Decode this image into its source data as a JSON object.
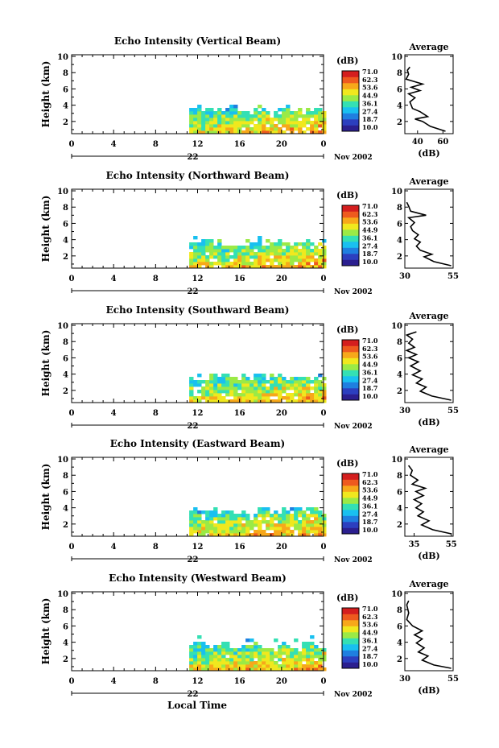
{
  "chart_data": {
    "type": "heatmap",
    "xlabel": "Local Time",
    "date_label": "Nov 2002",
    "colorbar": {
      "unit_label": "(dB)",
      "ticks": [
        "71.0",
        "62.3",
        "53.6",
        "44.9",
        "36.1",
        "27.4",
        "18.7",
        "10.0"
      ],
      "colors": [
        "#2b1f8f",
        "#2c3fbf",
        "#1f7fe0",
        "#19c0f0",
        "#34e0b4",
        "#9bea46",
        "#f0e81e",
        "#f7a81a",
        "#ee5a1e",
        "#d41e1e"
      ]
    },
    "panels": [
      {
        "title": "Echo Intensity (Vertical Beam)",
        "ylabel": "Height (km)",
        "day_label": "22",
        "x_ticks": [
          "0",
          "4",
          "8",
          "12",
          "16",
          "20",
          "0"
        ],
        "y_ticks": [
          "2",
          "4",
          "6",
          "8",
          "10"
        ],
        "xlim": [
          0,
          24
        ],
        "ylim": [
          0.5,
          10.2
        ],
        "echo": {
          "start_hour": 11.2,
          "end_hour": 24,
          "top_km": 3.6,
          "scatter_top_km": 4.1,
          "max_db": 70
        },
        "average": {
          "title": "Average",
          "xlabel": "(dB)",
          "x_ticks": [
            "40",
            "60"
          ],
          "y_ticks": [
            "2",
            "4",
            "6",
            "8",
            "10"
          ],
          "xlim": [
            30,
            68
          ],
          "ylim": [
            0.5,
            10.2
          ],
          "points": [
            [
              62,
              0.8
            ],
            [
              50,
              1.4
            ],
            [
              44,
              2.0
            ],
            [
              38,
              2.3
            ],
            [
              48,
              2.6
            ],
            [
              42,
              3.2
            ],
            [
              36,
              3.6
            ],
            [
              34,
              4.4
            ],
            [
              38,
              4.9
            ],
            [
              33,
              5.4
            ],
            [
              42,
              5.8
            ],
            [
              35,
              6.2
            ],
            [
              44,
              6.6
            ],
            [
              31,
              7.2
            ],
            [
              33,
              7.8
            ],
            [
              32,
              8.3
            ],
            [
              34,
              8.7
            ]
          ]
        }
      },
      {
        "title": "Echo Intensity (Northward Beam)",
        "ylabel": "Height (km)",
        "day_label": "22",
        "x_ticks": [
          "0",
          "4",
          "8",
          "12",
          "16",
          "20",
          "0"
        ],
        "y_ticks": [
          "2",
          "4",
          "6",
          "8",
          "10"
        ],
        "xlim": [
          0,
          24
        ],
        "ylim": [
          0.5,
          10.2
        ],
        "echo": {
          "start_hour": 11.2,
          "end_hour": 24,
          "top_km": 3.9,
          "scatter_top_km": 4.6,
          "max_db": 66
        },
        "average": {
          "title": "Average",
          "xlabel": "",
          "x_ticks": [
            "30",
            "55"
          ],
          "y_ticks": [
            "2",
            "4",
            "6",
            "8",
            "10"
          ],
          "xlim": [
            30,
            55
          ],
          "ylim": [
            0.5,
            10.2
          ],
          "points": [
            [
              54,
              0.8
            ],
            [
              45,
              1.3
            ],
            [
              40,
              1.9
            ],
            [
              44,
              2.2
            ],
            [
              38,
              2.7
            ],
            [
              36,
              3.2
            ],
            [
              38,
              3.7
            ],
            [
              35,
              4.1
            ],
            [
              37,
              4.6
            ],
            [
              34,
              5.1
            ],
            [
              33,
              5.6
            ],
            [
              35,
              6.1
            ],
            [
              32,
              6.7
            ],
            [
              41,
              7.0
            ],
            [
              33,
              7.5
            ],
            [
              32,
              8.1
            ],
            [
              31,
              8.6
            ]
          ]
        }
      },
      {
        "title": "Echo Intensity (Southward Beam)",
        "ylabel": "Height (km)",
        "day_label": "22",
        "x_ticks": [
          "0",
          "4",
          "8",
          "12",
          "16",
          "20",
          "0"
        ],
        "y_ticks": [
          "2",
          "4",
          "6",
          "8",
          "10"
        ],
        "xlim": [
          0,
          24
        ],
        "ylim": [
          0.5,
          10.2
        ],
        "echo": {
          "start_hour": 11.2,
          "end_hour": 24,
          "top_km": 3.8,
          "scatter_top_km": 4.3,
          "max_db": 66
        },
        "average": {
          "title": "Average",
          "xlabel": "(dB)",
          "x_ticks": [
            "30",
            "55"
          ],
          "y_ticks": [
            "2",
            "4",
            "6",
            "8",
            "10"
          ],
          "xlim": [
            30,
            55
          ],
          "ylim": [
            0.5,
            10.2
          ],
          "points": [
            [
              54,
              0.8
            ],
            [
              44,
              1.3
            ],
            [
              38,
              1.9
            ],
            [
              41,
              2.4
            ],
            [
              36,
              2.9
            ],
            [
              39,
              3.4
            ],
            [
              34,
              3.9
            ],
            [
              38,
              4.4
            ],
            [
              33,
              5.0
            ],
            [
              37,
              5.5
            ],
            [
              32,
              6.0
            ],
            [
              36,
              6.4
            ],
            [
              31,
              6.9
            ],
            [
              35,
              7.3
            ],
            [
              32,
              7.8
            ],
            [
              34,
              8.3
            ],
            [
              31,
              8.8
            ],
            [
              36,
              9.2
            ]
          ]
        }
      },
      {
        "title": "Echo Intensity (Eastward Beam)",
        "ylabel": "Height (km)",
        "day_label": "22",
        "x_ticks": [
          "0",
          "4",
          "8",
          "12",
          "16",
          "20",
          "0"
        ],
        "y_ticks": [
          "2",
          "4",
          "6",
          "8",
          "10"
        ],
        "xlim": [
          0,
          24
        ],
        "ylim": [
          0.5,
          10.2
        ],
        "echo": {
          "start_hour": 11.2,
          "end_hour": 24,
          "top_km": 3.8,
          "scatter_top_km": 4.3,
          "max_db": 64
        },
        "average": {
          "title": "Average",
          "xlabel": "(dB)",
          "x_ticks": [
            "35",
            "55"
          ],
          "y_ticks": [
            "2",
            "4",
            "6",
            "8",
            "10"
          ],
          "xlim": [
            30,
            56
          ],
          "ylim": [
            0.5,
            10.2
          ],
          "points": [
            [
              55,
              0.8
            ],
            [
              45,
              1.3
            ],
            [
              39,
              1.9
            ],
            [
              43,
              2.4
            ],
            [
              37,
              3.0
            ],
            [
              40,
              3.5
            ],
            [
              36,
              4.0
            ],
            [
              39,
              4.5
            ],
            [
              35,
              5.0
            ],
            [
              40,
              5.5
            ],
            [
              36,
              6.0
            ],
            [
              41,
              6.4
            ],
            [
              34,
              6.9
            ],
            [
              37,
              7.4
            ],
            [
              33,
              8.0
            ],
            [
              34,
              8.6
            ],
            [
              32,
              9.2
            ]
          ]
        }
      },
      {
        "title": "Echo Intensity (Westward Beam)",
        "ylabel": "Height (km)",
        "day_label": "22",
        "x_ticks": [
          "0",
          "4",
          "8",
          "12",
          "16",
          "20",
          "0"
        ],
        "y_ticks": [
          "2",
          "4",
          "6",
          "8",
          "10"
        ],
        "xlim": [
          0,
          24
        ],
        "ylim": [
          0.5,
          10.2
        ],
        "echo": {
          "start_hour": 11.2,
          "end_hour": 24,
          "top_km": 3.8,
          "scatter_top_km": 5.2,
          "max_db": 64
        },
        "average": {
          "title": "Average",
          "xlabel": "(dB)",
          "x_ticks": [
            "30",
            "55"
          ],
          "y_ticks": [
            "2",
            "4",
            "6",
            "8",
            "10"
          ],
          "xlim": [
            30,
            55
          ],
          "ylim": [
            0.5,
            10.2
          ],
          "points": [
            [
              54,
              0.8
            ],
            [
              45,
              1.2
            ],
            [
              39,
              1.8
            ],
            [
              42,
              2.3
            ],
            [
              37,
              2.8
            ],
            [
              40,
              3.3
            ],
            [
              36,
              3.9
            ],
            [
              39,
              4.4
            ],
            [
              35,
              4.9
            ],
            [
              39,
              5.4
            ],
            [
              34,
              6.0
            ],
            [
              31,
              6.8
            ],
            [
              32,
              7.6
            ],
            [
              31,
              8.6
            ],
            [
              32,
              9.1
            ]
          ]
        }
      }
    ]
  }
}
